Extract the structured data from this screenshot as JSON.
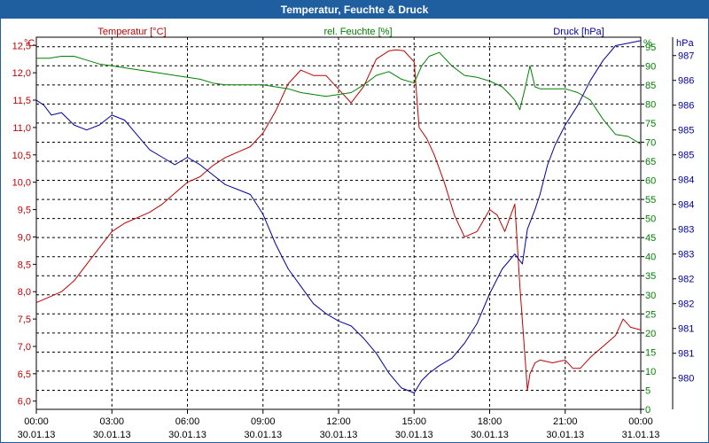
{
  "window": {
    "title": "Temperatur, Feuchte & Druck"
  },
  "chart_data": {
    "type": "line",
    "title": "Temperatur, Feuchte & Druck",
    "x_tick_times": [
      "00:00",
      "03:00",
      "06:00",
      "09:00",
      "12:00",
      "15:00",
      "18:00",
      "21:00",
      "00:00"
    ],
    "x_tick_dates": [
      "30.01.13",
      "30.01.13",
      "30.01.13",
      "30.01.13",
      "30.01.13",
      "30.01.13",
      "30.01.13",
      "30.01.13",
      "31.01.13"
    ],
    "xlim_hours": [
      0,
      24
    ],
    "grid": true,
    "axes": {
      "temperature": {
        "label": "Temperatur [°C]",
        "unit": "°C",
        "ylim": [
          5.85,
          12.65
        ],
        "ticks": [
          "12,5",
          "12,0",
          "11,5",
          "11,0",
          "10,5",
          "10,0",
          "9,5",
          "9,0",
          "8,5",
          "8,0",
          "7,5",
          "7,0",
          "6,5",
          "6,0"
        ],
        "tick_values": [
          12.5,
          12.0,
          11.5,
          11.0,
          10.5,
          10.0,
          9.5,
          9.0,
          8.5,
          8.0,
          7.5,
          7.0,
          6.5,
          6.0
        ],
        "color": "#c00000"
      },
      "humidity": {
        "label": "rel. Feuchte [%]",
        "unit": "%",
        "ylim": [
          0,
          97.5
        ],
        "ticks": [
          "95",
          "90",
          "85",
          "80",
          "75",
          "70",
          "65",
          "60",
          "55",
          "50",
          "45",
          "40",
          "35",
          "30",
          "25",
          "20",
          "15",
          "10",
          "5",
          "0"
        ],
        "tick_values": [
          95,
          90,
          85,
          80,
          75,
          70,
          65,
          60,
          55,
          50,
          45,
          40,
          35,
          30,
          25,
          20,
          15,
          10,
          5,
          0
        ],
        "color": "#008000"
      },
      "pressure": {
        "label": "Druck [hPa]",
        "unit": "hPa",
        "ylim": [
          979.87,
          987.37
        ],
        "ticks": [
          "987",
          "986",
          "986",
          "985",
          "985",
          "984",
          "984",
          "983",
          "983",
          "982",
          "982",
          "981",
          "981",
          "980"
        ],
        "tick_values": [
          987.0,
          986.5,
          986.0,
          985.5,
          985.0,
          984.5,
          984.0,
          983.5,
          983.0,
          982.5,
          982.0,
          981.5,
          981.0,
          980.5
        ],
        "color": "#0000a0"
      }
    },
    "series": [
      {
        "name": "Temperatur",
        "axis": "temperature",
        "color": "#c00000",
        "x": [
          0,
          0.5,
          1,
          1.5,
          2,
          2.5,
          3,
          3.5,
          4,
          4.5,
          5,
          5.5,
          6,
          6.5,
          7,
          7.5,
          8,
          8.5,
          9,
          9.5,
          10,
          10.5,
          11,
          11.5,
          12,
          12.5,
          13,
          13.5,
          14,
          14.3,
          14.6,
          15,
          15.2,
          15.5,
          15.8,
          16.2,
          16.6,
          17,
          17.5,
          18,
          18.3,
          18.6,
          18.8,
          19,
          19.2,
          19.5,
          19.6,
          19.8,
          20,
          20.5,
          21,
          21.3,
          21.6,
          22,
          22.5,
          23,
          23.3,
          23.6,
          24
        ],
        "values": [
          7.8,
          7.9,
          8.0,
          8.2,
          8.5,
          8.8,
          9.1,
          9.25,
          9.35,
          9.45,
          9.6,
          9.8,
          10.0,
          10.1,
          10.3,
          10.45,
          10.55,
          10.65,
          10.9,
          11.3,
          11.8,
          12.05,
          11.95,
          11.95,
          11.7,
          11.45,
          11.75,
          12.25,
          12.4,
          12.42,
          12.4,
          12.2,
          11.0,
          10.8,
          10.5,
          10.0,
          9.4,
          9.0,
          9.1,
          9.5,
          9.4,
          9.1,
          9.35,
          9.6,
          8.1,
          6.2,
          6.5,
          6.7,
          6.75,
          6.7,
          6.75,
          6.6,
          6.6,
          6.8,
          7.0,
          7.2,
          7.5,
          7.35,
          7.3
        ]
      },
      {
        "name": "rel. Feuchte",
        "axis": "humidity",
        "color": "#008000",
        "x": [
          0,
          0.5,
          1,
          1.5,
          2,
          2.5,
          3,
          3.5,
          4,
          4.5,
          5,
          5.5,
          6,
          6.5,
          7,
          7.5,
          8,
          8.5,
          9,
          9.5,
          10,
          10.5,
          11,
          11.5,
          12,
          12.5,
          13,
          13.5,
          14,
          14.5,
          15,
          15.3,
          15.6,
          16,
          16.5,
          17,
          17.5,
          18,
          18.5,
          18.8,
          19,
          19.2,
          19.4,
          19.6,
          19.8,
          20,
          20.2,
          20.6,
          21,
          21.5,
          22,
          22.5,
          23,
          23.5,
          24
        ],
        "values": [
          92,
          92,
          92.5,
          92.5,
          91.5,
          90.5,
          90,
          89.5,
          89,
          88.5,
          88,
          87.5,
          87,
          86.5,
          85.5,
          85,
          85,
          85,
          85,
          84.5,
          84,
          83,
          82.5,
          82,
          82.5,
          83,
          85,
          87.5,
          88.5,
          86.5,
          85.5,
          90,
          92.5,
          93.5,
          90,
          87.5,
          87,
          86,
          84.5,
          82.5,
          81,
          78.5,
          84,
          90,
          84.5,
          84,
          84,
          84,
          84,
          83,
          81,
          76,
          72,
          71.5,
          69.5
        ]
      },
      {
        "name": "Druck",
        "axis": "pressure",
        "color": "#0000a0",
        "x": [
          0,
          0.3,
          0.6,
          1,
          1.5,
          2,
          2.5,
          3,
          3.5,
          4,
          4.5,
          5,
          5.5,
          6,
          6.5,
          7,
          7.5,
          8,
          8.5,
          9,
          9.5,
          10,
          10.5,
          11,
          11.5,
          12,
          12.5,
          13,
          13.5,
          14,
          14.5,
          15,
          15.3,
          15.6,
          16,
          16.5,
          17,
          17.5,
          18,
          18.5,
          19,
          19.3,
          19.5,
          19.8,
          20,
          20.3,
          20.6,
          21,
          21.5,
          22,
          22.5,
          23,
          23.5,
          24
        ],
        "values": [
          986.1,
          986.0,
          985.8,
          985.85,
          985.6,
          985.5,
          985.6,
          985.8,
          985.7,
          985.4,
          985.1,
          984.95,
          984.8,
          984.95,
          984.8,
          984.6,
          984.4,
          984.3,
          984.2,
          983.8,
          983.2,
          982.7,
          982.35,
          982.0,
          981.8,
          981.65,
          981.55,
          981.3,
          981.0,
          980.6,
          980.3,
          980.2,
          980.45,
          980.6,
          980.75,
          980.9,
          981.2,
          981.6,
          982.2,
          982.7,
          983.0,
          982.8,
          983.5,
          983.9,
          984.2,
          984.8,
          985.2,
          985.6,
          986.0,
          986.5,
          986.9,
          987.2,
          987.25,
          987.3
        ]
      }
    ]
  }
}
